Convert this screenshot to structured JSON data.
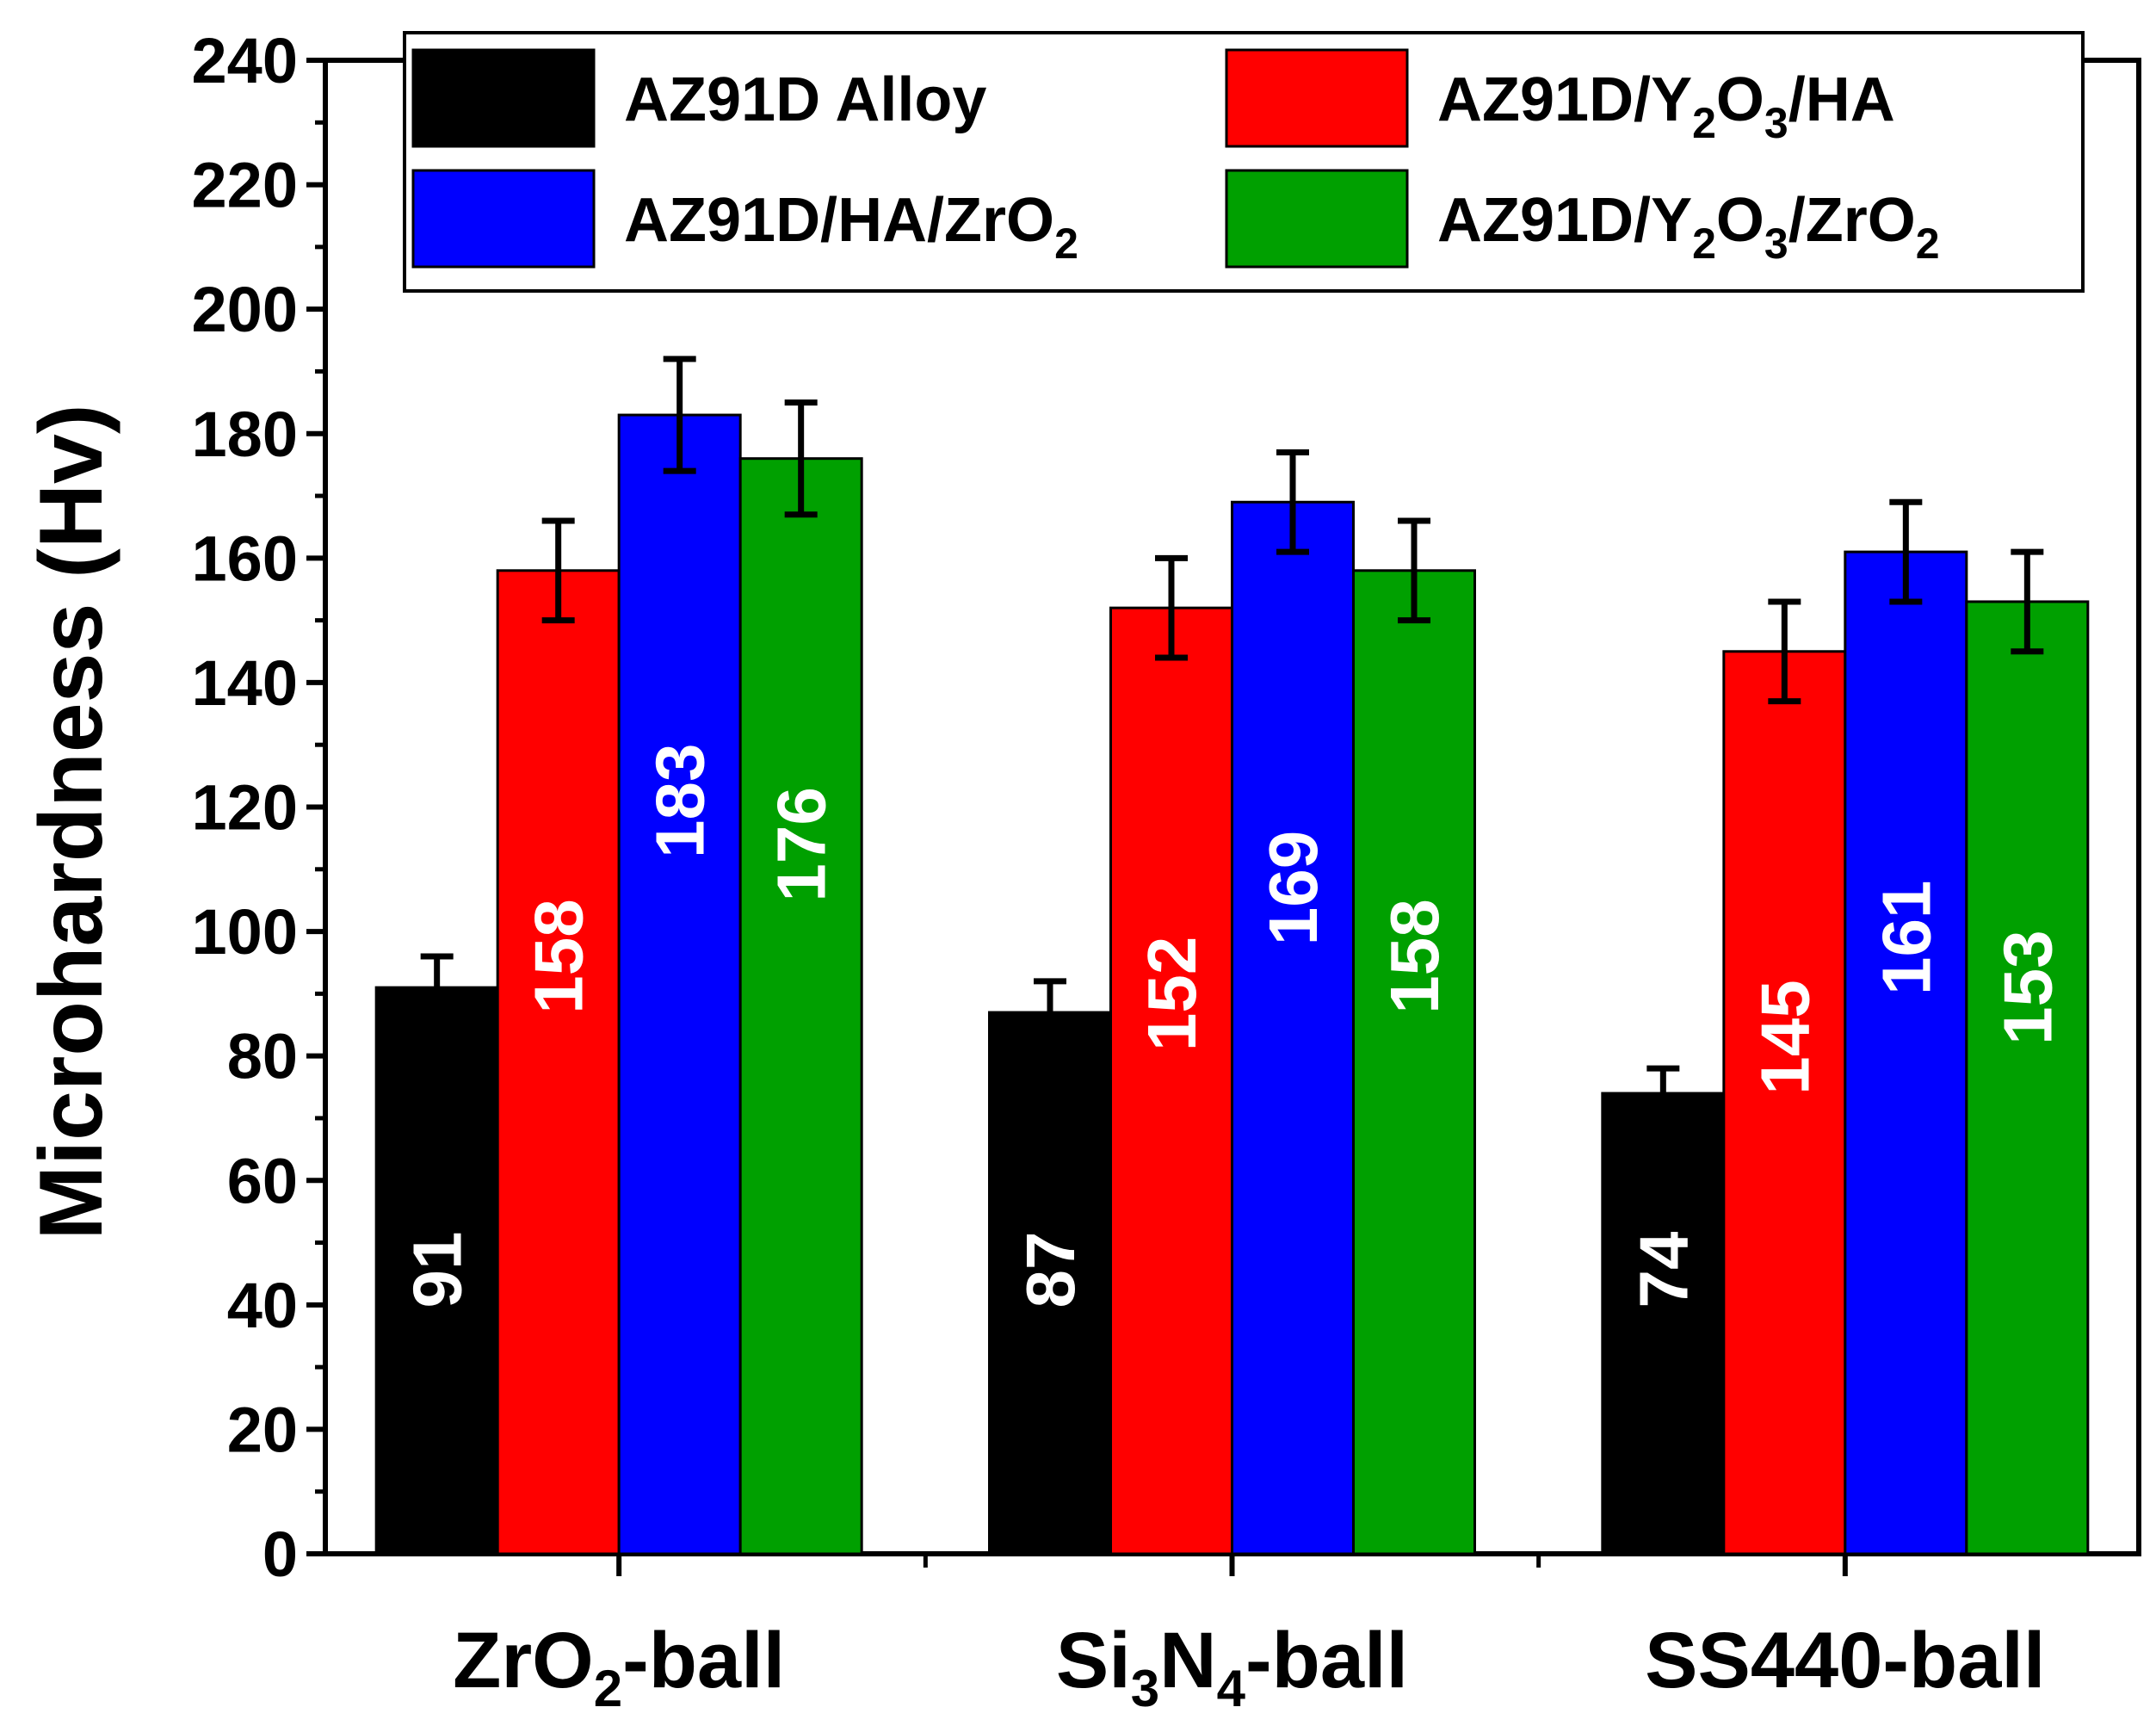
{
  "chart_data": {
    "type": "bar",
    "ylabel": "Microhardness (Hv)",
    "xlabel": "",
    "ylim": [
      0,
      240
    ],
    "yticks": [
      "0",
      "20",
      "40",
      "60",
      "80",
      "100",
      "120",
      "140",
      "160",
      "180",
      "200",
      "220",
      "240"
    ],
    "categories": [
      {
        "main": "ZrO",
        "sub": "2",
        "suffix": "-ball"
      },
      {
        "main": "Si",
        "sub": "3",
        "mid": "N",
        "sub2": "4",
        "suffix": "-ball"
      },
      {
        "main": "SS440-ball"
      }
    ],
    "series": [
      {
        "name": "AZ91D Alloy",
        "color": "#000000",
        "values": [
          91,
          87,
          74
        ],
        "errors": [
          5,
          5,
          4
        ],
        "labels": [
          "91",
          "87",
          "74"
        ],
        "legend": {
          "parts": [
            {
              "t": "AZ91D Alloy"
            }
          ]
        }
      },
      {
        "name": "AZ91D/Y2O3/HA",
        "color": "#ff0000",
        "values": [
          158,
          152,
          145
        ],
        "errors": [
          8,
          8,
          8
        ],
        "labels": [
          "158",
          "152",
          "145"
        ],
        "legend": {
          "parts": [
            {
              "t": "AZ91D/Y"
            },
            {
              "t": "2",
              "sub": true
            },
            {
              "t": "O"
            },
            {
              "t": "3",
              "sub": true
            },
            {
              "t": "/HA"
            }
          ]
        }
      },
      {
        "name": "AZ91D/HA/ZrO2",
        "color": "#0000ff",
        "values": [
          183,
          169,
          161
        ],
        "errors": [
          9,
          8,
          8
        ],
        "labels": [
          "183",
          "169",
          "161"
        ],
        "legend": {
          "parts": [
            {
              "t": "AZ91D/HA/ZrO"
            },
            {
              "t": "2",
              "sub": true
            }
          ]
        }
      },
      {
        "name": "AZ91D/Y2O3/ZrO2",
        "color": "#00a000",
        "values": [
          176,
          158,
          153
        ],
        "errors": [
          9,
          8,
          8
        ],
        "labels": [
          "176",
          "158",
          "153"
        ],
        "legend": {
          "parts": [
            {
              "t": "AZ91D/Y"
            },
            {
              "t": "2",
              "sub": true
            },
            {
              "t": "O"
            },
            {
              "t": "3",
              "sub": true
            },
            {
              "t": "/ZrO"
            },
            {
              "t": "2",
              "sub": true
            }
          ]
        }
      }
    ],
    "legend_position": "top"
  }
}
